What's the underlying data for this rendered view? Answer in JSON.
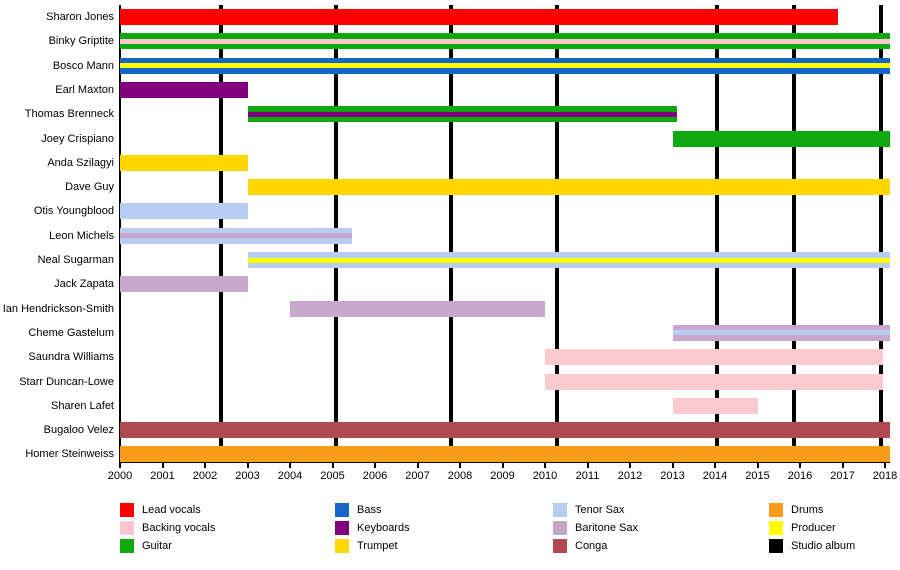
{
  "chart_data": {
    "type": "bar",
    "subtype": "gantt-membership-timeline",
    "title": "",
    "x_axis": {
      "min": 2000,
      "max": 2018.15,
      "ticks": [
        2000,
        2001,
        2002,
        2003,
        2004,
        2005,
        2006,
        2007,
        2008,
        2009,
        2010,
        2011,
        2012,
        2013,
        2014,
        2015,
        2016,
        2017,
        2018
      ]
    },
    "grid": "vertical-album-lines-only",
    "studio_album_lines": [
      2002.38,
      2005.08,
      2007.78,
      2010.28,
      2014.05,
      2015.85,
      2017.9
    ],
    "roles": {
      "lead": {
        "label": "Lead vocals",
        "color": "#FF0000"
      },
      "backing": {
        "label": "Backing vocals",
        "color": "#FCC9CF"
      },
      "guitar": {
        "label": "Guitar",
        "color": "#0FA80F"
      },
      "bass": {
        "label": "Bass",
        "color": "#1566C6"
      },
      "keyboards": {
        "label": "Keyboards",
        "color": "#800080"
      },
      "trumpet": {
        "label": "Trumpet",
        "color": "#FFD700"
      },
      "tenor": {
        "label": "Tenor Sax",
        "color": "#B9CCF2"
      },
      "baritone": {
        "label": "Baritone Sax",
        "color": "#C7A8CC"
      },
      "conga": {
        "label": "Conga",
        "color": "#B04A4E"
      },
      "drums": {
        "label": "Drums",
        "color": "#F99C1B"
      },
      "producer": {
        "label": "Producer",
        "color": "#FFFF00"
      },
      "album": {
        "label": "Studio album",
        "color": "#000000"
      }
    },
    "members": [
      {
        "name": "Sharon Jones",
        "bars": [
          {
            "start": 2000,
            "end": 2016.9,
            "role": "lead"
          }
        ]
      },
      {
        "name": "Binky Griptite",
        "bars": [
          {
            "start": 2000,
            "end": 2018.12,
            "role": "guitar",
            "stripe": "backing"
          }
        ]
      },
      {
        "name": "Bosco Mann",
        "bars": [
          {
            "start": 2000,
            "end": 2018.12,
            "role": "bass",
            "stripe": "producer"
          }
        ]
      },
      {
        "name": "Earl Maxton",
        "bars": [
          {
            "start": 2000,
            "end": 2003,
            "role": "keyboards"
          }
        ]
      },
      {
        "name": "Thomas Brenneck",
        "bars": [
          {
            "start": 2003,
            "end": 2013.1,
            "role": "guitar",
            "stripe": "keyboards"
          }
        ]
      },
      {
        "name": "Joey Crispiano",
        "bars": [
          {
            "start": 2013,
            "end": 2018.12,
            "role": "guitar"
          }
        ]
      },
      {
        "name": "Anda Szilagyi",
        "bars": [
          {
            "start": 2000,
            "end": 2003,
            "role": "trumpet"
          }
        ]
      },
      {
        "name": "Dave Guy",
        "bars": [
          {
            "start": 2003,
            "end": 2018.12,
            "role": "trumpet"
          }
        ]
      },
      {
        "name": "Otis Youngblood",
        "bars": [
          {
            "start": 2000,
            "end": 2003,
            "role": "tenor"
          }
        ]
      },
      {
        "name": "Leon Michels",
        "bars": [
          {
            "start": 2000,
            "end": 2005.45,
            "role": "tenor",
            "stripe": "baritone"
          }
        ]
      },
      {
        "name": "Neal Sugarman",
        "bars": [
          {
            "start": 2003,
            "end": 2018.12,
            "role": "tenor",
            "stripe": "producer"
          }
        ]
      },
      {
        "name": "Jack Zapata",
        "bars": [
          {
            "start": 2000,
            "end": 2003,
            "role": "baritone"
          }
        ]
      },
      {
        "name": "Ian Hendrickson-Smith",
        "bars": [
          {
            "start": 2004,
            "end": 2010,
            "role": "baritone"
          }
        ]
      },
      {
        "name": "Cheme Gastelum",
        "bars": [
          {
            "start": 2013,
            "end": 2018.12,
            "role": "baritone",
            "stripe": "tenor"
          }
        ]
      },
      {
        "name": "Saundra Williams",
        "bars": [
          {
            "start": 2010,
            "end": 2017.95,
            "role": "backing"
          }
        ]
      },
      {
        "name": "Starr Duncan-Lowe",
        "bars": [
          {
            "start": 2010,
            "end": 2017.95,
            "role": "backing"
          }
        ]
      },
      {
        "name": "Sharen Lafet",
        "bars": [
          {
            "start": 2013,
            "end": 2015,
            "role": "backing"
          }
        ]
      },
      {
        "name": "Bugaloo Velez",
        "bars": [
          {
            "start": 2000,
            "end": 2018.12,
            "role": "conga"
          }
        ]
      },
      {
        "name": "Homer Steinweiss",
        "bars": [
          {
            "start": 2000,
            "end": 2018.12,
            "role": "drums"
          }
        ]
      }
    ]
  },
  "legend": {
    "position": "bottom",
    "columns": [
      [
        "lead",
        "backing",
        "guitar"
      ],
      [
        "bass",
        "keyboards",
        "trumpet"
      ],
      [
        "tenor",
        "baritone",
        "conga"
      ],
      [
        "drums",
        "producer",
        "album"
      ]
    ]
  }
}
